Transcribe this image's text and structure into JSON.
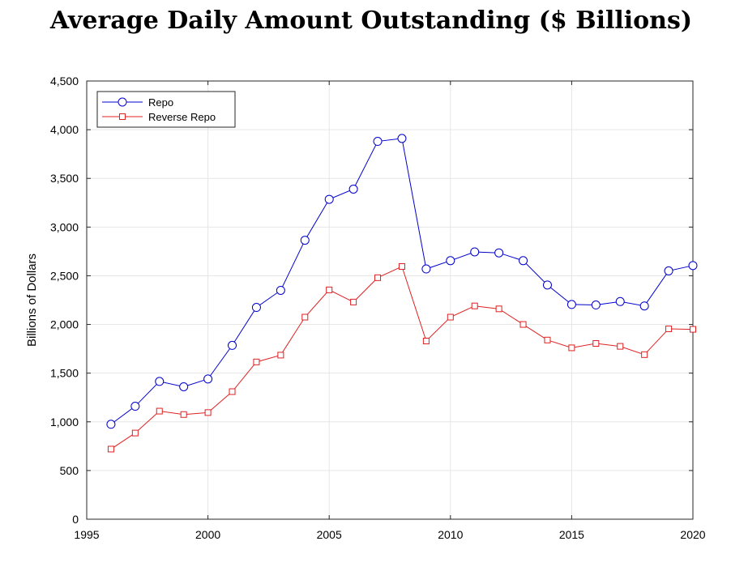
{
  "chart_data": {
    "type": "line",
    "title": "Average Daily Amount Outstanding ($ Billions)",
    "ylabel": "Billions of Dollars",
    "xlabel": "",
    "xlim": [
      1995,
      2020
    ],
    "ylim": [
      0,
      4500
    ],
    "xticks": [
      "1995",
      "2000",
      "2005",
      "2010",
      "2015",
      "2020"
    ],
    "yticks": [
      "0",
      "500",
      "1,000",
      "1,500",
      "2,000",
      "2,500",
      "3,000",
      "3,500",
      "4,000",
      "4,500"
    ],
    "grid": true,
    "legend_position": "top-left",
    "x": [
      1996,
      1997,
      1998,
      1999,
      2000,
      2001,
      2002,
      2003,
      2004,
      2005,
      2006,
      2007,
      2008,
      2009,
      2010,
      2011,
      2012,
      2013,
      2014,
      2015,
      2016,
      2017,
      2018,
      2019,
      2020
    ],
    "series": [
      {
        "name": "Repo",
        "color": "#0000cc",
        "marker": "circle",
        "values": [
          975,
          1160,
          1415,
          1360,
          1440,
          1785,
          2175,
          2350,
          2865,
          3285,
          3390,
          3880,
          3910,
          2570,
          2655,
          2745,
          2735,
          2655,
          2405,
          2205,
          2200,
          2235,
          2190,
          2550,
          2605
        ]
      },
      {
        "name": "Reverse Repo",
        "color": "#e02020",
        "marker": "square",
        "values": [
          720,
          885,
          1110,
          1075,
          1095,
          1310,
          1615,
          1685,
          2075,
          2355,
          2230,
          2480,
          2595,
          1830,
          2075,
          2190,
          2160,
          2000,
          1840,
          1760,
          1805,
          1775,
          1690,
          1955,
          1950
        ]
      }
    ]
  }
}
